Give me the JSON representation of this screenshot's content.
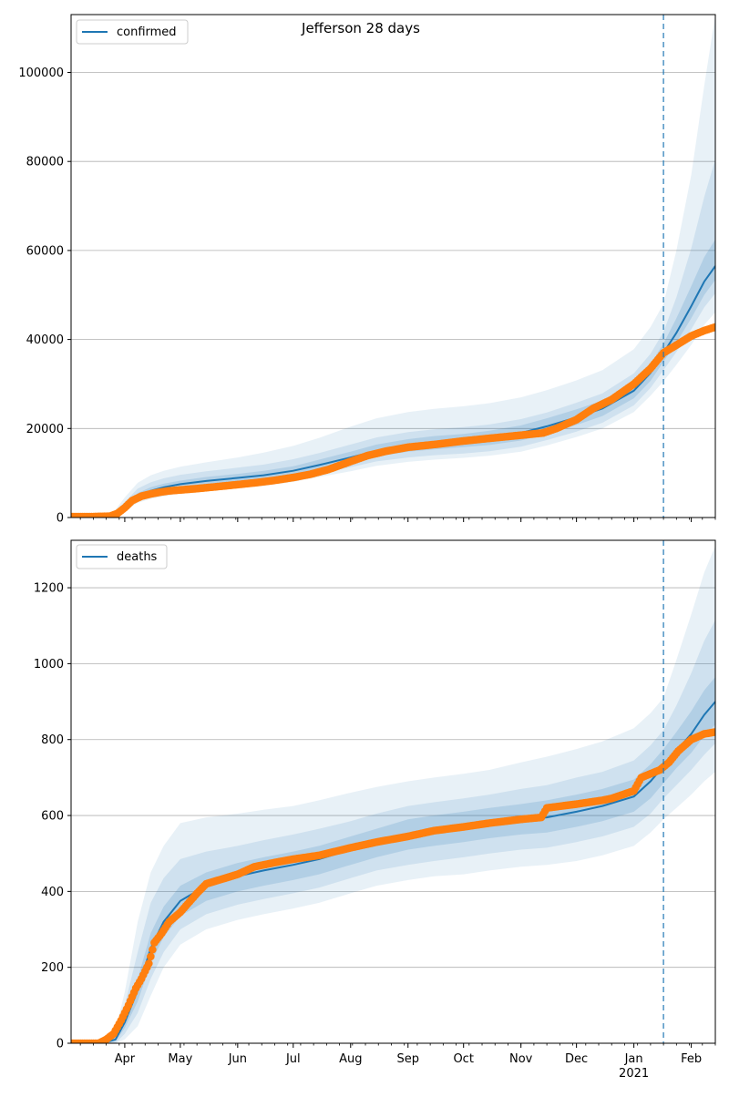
{
  "chart_data": {
    "title": "Jefferson 28 days",
    "type": "line",
    "x_month_labels": [
      "Apr",
      "May",
      "Jun",
      "Jul",
      "Aug",
      "Sep",
      "Oct",
      "Nov",
      "Dec",
      "Jan",
      "Feb"
    ],
    "x_year_label": "2021",
    "forecast_start": "2021-01-17",
    "colors": {
      "model": "#1f77b4",
      "observed": "#ff7f0e",
      "band": "#1f77b4",
      "vline": "#1f77b4",
      "grid": "#b0b0b0",
      "axis": "#000000"
    },
    "panels": [
      {
        "name": "confirmed",
        "legend": "confirmed",
        "ylim": [
          0,
          113000
        ],
        "yticks": [
          0,
          20000,
          40000,
          60000,
          80000,
          100000
        ],
        "grid": true,
        "legend_position": "top-left",
        "model": {
          "x": [
            "2020-03-03",
            "2020-03-20",
            "2020-03-25",
            "2020-04-01",
            "2020-04-08",
            "2020-04-15",
            "2020-04-22",
            "2020-05-01",
            "2020-05-15",
            "2020-06-01",
            "2020-06-15",
            "2020-07-01",
            "2020-07-15",
            "2020-08-01",
            "2020-08-15",
            "2020-09-01",
            "2020-09-15",
            "2020-10-01",
            "2020-10-15",
            "2020-11-01",
            "2020-11-15",
            "2020-12-01",
            "2020-12-15",
            "2021-01-01",
            "2021-01-10",
            "2021-01-17",
            "2021-01-24",
            "2021-02-01",
            "2021-02-08",
            "2021-02-14"
          ],
          "y": [
            200,
            200,
            400,
            2500,
            4800,
            6000,
            6800,
            7500,
            8200,
            8900,
            9500,
            10500,
            11800,
            13500,
            15000,
            16200,
            16800,
            17300,
            17900,
            19000,
            20500,
            22500,
            24500,
            28500,
            32500,
            37000,
            41500,
            47500,
            53000,
            56500
          ],
          "bands": [
            {
              "lower": [
                200,
                200,
                200,
                1500,
                3300,
                4200,
                4800,
                5400,
                6000,
                6600,
                7100,
                8000,
                9100,
                10400,
                11600,
                12500,
                13000,
                13400,
                13900,
                14800,
                16200,
                18100,
                20000,
                23700,
                27400,
                30600,
                34300,
                38800,
                43300,
                46100
              ],
              "upper": [
                200,
                200,
                700,
                4500,
                7800,
                9500,
                10500,
                11400,
                12400,
                13500,
                14600,
                16100,
                17900,
                20400,
                22300,
                23700,
                24400,
                25000,
                25700,
                27000,
                28600,
                30800,
                33100,
                37800,
                42800,
                48000,
                60000,
                77000,
                97000,
                113000
              ]
            },
            {
              "lower": [
                200,
                200,
                300,
                1900,
                3800,
                4800,
                5500,
                6100,
                6700,
                7300,
                7900,
                8800,
                9900,
                11300,
                12600,
                13500,
                14000,
                14400,
                14900,
                15900,
                17400,
                19300,
                21300,
                25200,
                29100,
                33100,
                37200,
                42300,
                47200,
                50400
              ],
              "upper": [
                200,
                200,
                550,
                3500,
                6500,
                7900,
                8800,
                9600,
                10400,
                11200,
                11900,
                13100,
                14500,
                16400,
                18000,
                19200,
                19800,
                20300,
                20900,
                22100,
                23600,
                25800,
                27900,
                32400,
                36800,
                41700,
                49500,
                60500,
                72000,
                80500
              ]
            },
            {
              "lower": [
                200,
                200,
                350,
                2200,
                4300,
                5400,
                6100,
                6800,
                7400,
                8000,
                8600,
                9600,
                10800,
                12300,
                13700,
                14800,
                15300,
                15800,
                16300,
                17300,
                18800,
                20800,
                22800,
                26800,
                30700,
                35000,
                39300,
                44800,
                50000,
                53400
              ],
              "upper": [
                200,
                200,
                470,
                2900,
                5500,
                6800,
                7600,
                8300,
                9100,
                9800,
                10500,
                11500,
                13000,
                14800,
                16400,
                17600,
                18300,
                18800,
                19500,
                20700,
                22300,
                24300,
                26300,
                30300,
                34500,
                39100,
                44800,
                52000,
                58500,
                62500
              ]
            }
          ]
        },
        "observed": {
          "x": [
            "2020-03-03",
            "2020-03-15",
            "2020-03-24",
            "2020-03-28",
            "2020-04-01",
            "2020-04-05",
            "2020-04-10",
            "2020-04-15",
            "2020-04-20",
            "2020-04-25",
            "2020-05-01",
            "2020-05-10",
            "2020-05-20",
            "2020-06-01",
            "2020-06-10",
            "2020-06-20",
            "2020-07-01",
            "2020-07-10",
            "2020-07-20",
            "2020-08-01",
            "2020-08-10",
            "2020-08-20",
            "2020-09-01",
            "2020-09-15",
            "2020-10-01",
            "2020-10-15",
            "2020-11-01",
            "2020-11-13",
            "2020-11-20",
            "2020-12-01",
            "2020-12-10",
            "2020-12-20",
            "2021-01-01",
            "2021-01-10",
            "2021-01-17",
            "2021-01-25",
            "2021-02-01",
            "2021-02-08",
            "2021-02-14"
          ],
          "y": [
            200,
            200,
            300,
            900,
            2200,
            3800,
            4800,
            5300,
            5700,
            6000,
            6200,
            6500,
            6900,
            7400,
            7800,
            8300,
            9000,
            9700,
            10800,
            12600,
            13900,
            14900,
            15800,
            16400,
            17200,
            17800,
            18500,
            19000,
            20000,
            22000,
            24500,
            26500,
            30000,
            33500,
            37000,
            39000,
            40800,
            42000,
            42800
          ]
        }
      },
      {
        "name": "deaths",
        "legend": "deaths",
        "ylim": [
          0,
          1325
        ],
        "yticks": [
          0,
          200,
          400,
          600,
          800,
          1000,
          1200
        ],
        "grid": true,
        "legend_position": "top-left",
        "model": {
          "x": [
            "2020-03-03",
            "2020-03-20",
            "2020-03-27",
            "2020-04-01",
            "2020-04-08",
            "2020-04-15",
            "2020-04-22",
            "2020-05-01",
            "2020-05-15",
            "2020-06-01",
            "2020-06-15",
            "2020-07-01",
            "2020-07-15",
            "2020-08-01",
            "2020-08-15",
            "2020-09-01",
            "2020-09-15",
            "2020-10-01",
            "2020-10-15",
            "2020-11-01",
            "2020-11-15",
            "2020-12-01",
            "2020-12-15",
            "2021-01-01",
            "2021-01-10",
            "2021-01-17",
            "2021-01-24",
            "2021-02-01",
            "2021-02-08",
            "2021-02-14"
          ],
          "y": [
            0,
            0,
            10,
            55,
            140,
            250,
            320,
            375,
            415,
            440,
            455,
            470,
            485,
            510,
            530,
            550,
            560,
            570,
            580,
            590,
            595,
            610,
            625,
            650,
            690,
            730,
            770,
            815,
            865,
            900
          ],
          "bands": [
            {
              "lower": [
                0,
                0,
                0,
                10,
                45,
                125,
                200,
                260,
                300,
                325,
                340,
                355,
                370,
                395,
                415,
                430,
                440,
                445,
                455,
                465,
                470,
                480,
                495,
                520,
                555,
                590,
                620,
                655,
                690,
                715
              ],
              "upper": [
                0,
                0,
                35,
                135,
                320,
                450,
                520,
                580,
                595,
                605,
                615,
                625,
                640,
                660,
                675,
                690,
                700,
                710,
                720,
                740,
                755,
                775,
                795,
                830,
                870,
                910,
                1010,
                1130,
                1240,
                1310
              ]
            },
            {
              "lower": [
                0,
                0,
                0,
                25,
                80,
                170,
                240,
                300,
                340,
                365,
                380,
                395,
                410,
                435,
                455,
                470,
                480,
                490,
                500,
                510,
                515,
                530,
                545,
                570,
                605,
                645,
                680,
                720,
                760,
                790
              ],
              "upper": [
                0,
                0,
                25,
                100,
                240,
                370,
                435,
                485,
                505,
                520,
                535,
                550,
                565,
                585,
                605,
                625,
                635,
                645,
                655,
                670,
                680,
                700,
                715,
                745,
                785,
                825,
                890,
                975,
                1060,
                1115
              ]
            },
            {
              "lower": [
                0,
                0,
                5,
                40,
                110,
                210,
                280,
                335,
                375,
                400,
                415,
                430,
                445,
                470,
                490,
                510,
                520,
                530,
                540,
                550,
                555,
                570,
                585,
                610,
                645,
                685,
                725,
                765,
                810,
                840
              ],
              "upper": [
                0,
                0,
                15,
                70,
                170,
                290,
                360,
                415,
                450,
                475,
                490,
                505,
                520,
                545,
                565,
                590,
                600,
                610,
                620,
                630,
                640,
                655,
                670,
                695,
                735,
                775,
                820,
                875,
                930,
                965
              ]
            }
          ]
        },
        "observed": {
          "x": [
            "2020-03-03",
            "2020-03-18",
            "2020-03-22",
            "2020-03-26",
            "2020-03-30",
            "2020-04-03",
            "2020-04-07",
            "2020-04-10",
            "2020-04-14",
            "2020-04-17",
            "2020-04-21",
            "2020-04-25",
            "2020-05-01",
            "2020-05-10",
            "2020-05-15",
            "2020-06-01",
            "2020-06-10",
            "2020-06-20",
            "2020-07-01",
            "2020-07-15",
            "2020-08-01",
            "2020-08-15",
            "2020-09-01",
            "2020-09-15",
            "2020-10-01",
            "2020-10-15",
            "2020-11-01",
            "2020-11-12",
            "2020-11-15",
            "2020-12-01",
            "2020-12-15",
            "2020-12-20",
            "2021-01-01",
            "2021-01-05",
            "2021-01-15",
            "2021-01-20",
            "2021-01-25",
            "2021-02-01",
            "2021-02-08",
            "2021-02-14"
          ],
          "y": [
            0,
            0,
            10,
            25,
            60,
            100,
            145,
            170,
            210,
            265,
            290,
            320,
            345,
            395,
            420,
            445,
            465,
            475,
            485,
            495,
            515,
            530,
            545,
            560,
            570,
            580,
            590,
            595,
            620,
            630,
            640,
            645,
            665,
            700,
            720,
            740,
            770,
            800,
            815,
            820
          ]
        }
      }
    ]
  }
}
